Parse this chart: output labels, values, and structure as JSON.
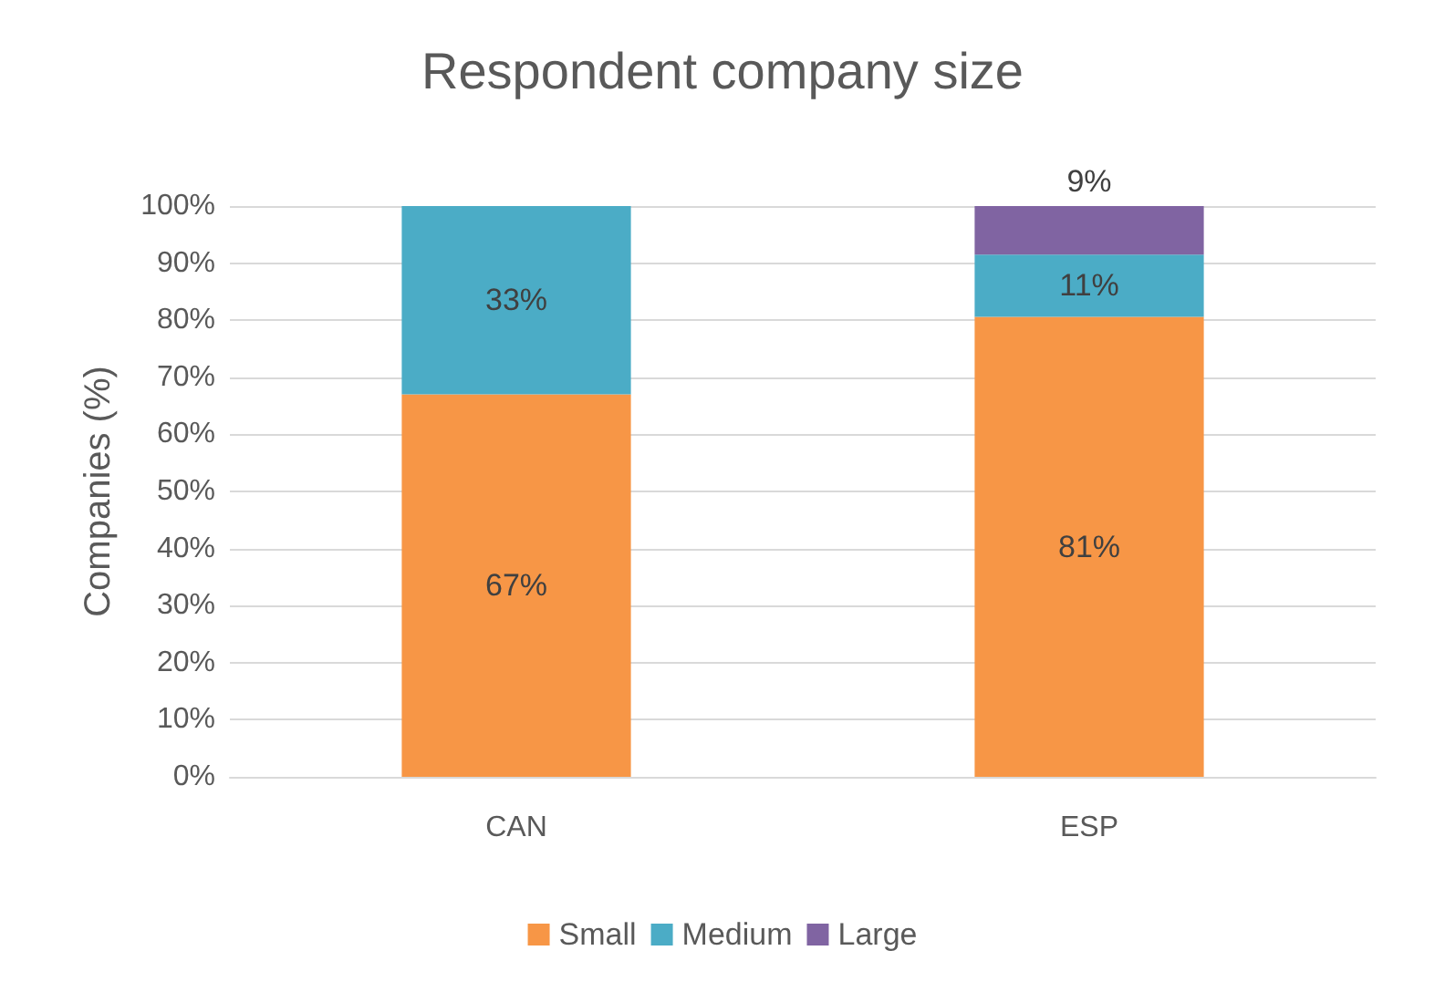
{
  "chart_data": {
    "type": "bar",
    "title": "Respondent company size",
    "ylabel": "Companies (%)",
    "categories": [
      "CAN",
      "ESP"
    ],
    "stacked": true,
    "series": [
      {
        "name": "Small",
        "color": "#f79646",
        "values": [
          67,
          80.6
        ],
        "value_labels": [
          "67%",
          "81%"
        ]
      },
      {
        "name": "Medium",
        "color": "#4bacc6",
        "values": [
          33,
          10.9
        ],
        "value_labels": [
          "33%",
          "11%"
        ]
      },
      {
        "name": "Large",
        "color": "#8064a2",
        "values": [
          null,
          8.5
        ],
        "value_labels": [
          null,
          "9%"
        ]
      }
    ],
    "ylim": [
      0,
      100
    ],
    "yticks": [
      {
        "value": 0,
        "label": "0%"
      },
      {
        "value": 10,
        "label": "10%"
      },
      {
        "value": 20,
        "label": "20%"
      },
      {
        "value": 30,
        "label": "30%"
      },
      {
        "value": 40,
        "label": "40%"
      },
      {
        "value": 50,
        "label": "50%"
      },
      {
        "value": 60,
        "label": "60%"
      },
      {
        "value": 70,
        "label": "70%"
      },
      {
        "value": 80,
        "label": "80%"
      },
      {
        "value": 90,
        "label": "90%"
      },
      {
        "value": 100,
        "label": "100%"
      }
    ],
    "grid": "y",
    "legend": "bottom"
  }
}
